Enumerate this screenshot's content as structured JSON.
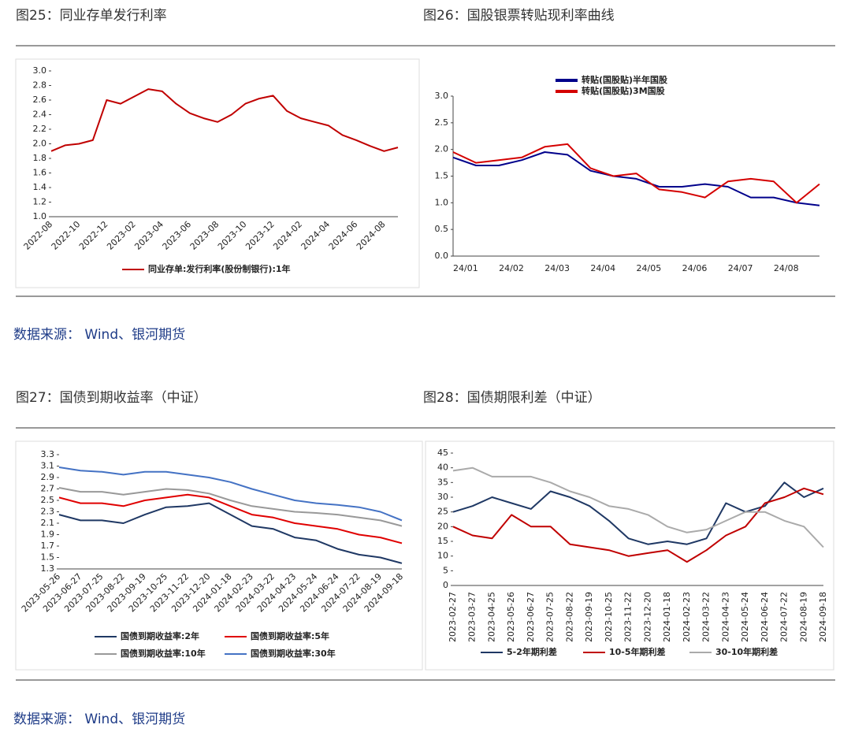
{
  "chart_data": [
    {
      "type": "line",
      "title": "图25：同业存单发行利率",
      "categories": [
        "2022-08",
        null,
        "2022-10",
        null,
        "2022-12",
        null,
        "2023-02",
        null,
        "2023-04",
        null,
        "2023-06",
        null,
        "2023-08",
        null,
        "2023-10",
        null,
        "2023-12",
        null,
        "2024-02",
        null,
        "2024-04",
        null,
        "2024-06",
        null,
        "2024-08",
        null
      ],
      "series": [
        {
          "name": "同业存单:发行利率(股份制银行):1年",
          "color": "#c00000",
          "values": [
            1.9,
            1.98,
            2.0,
            2.05,
            2.6,
            2.55,
            2.65,
            2.75,
            2.72,
            2.55,
            2.42,
            2.35,
            2.3,
            2.4,
            2.55,
            2.62,
            2.66,
            2.45,
            2.35,
            2.3,
            2.25,
            2.12,
            2.05,
            1.97,
            1.9,
            1.95
          ]
        }
      ],
      "ylim": [
        1.0,
        3.0
      ],
      "yticks": [
        {
          "value": 1,
          "label": "1.0"
        },
        1.2,
        1.4,
        1.6,
        1.8,
        {
          "value": 2,
          "label": "2.0"
        },
        2.2,
        2.4,
        2.6,
        2.8,
        {
          "value": 3,
          "label": "3.0"
        }
      ],
      "legend": "bottom"
    },
    {
      "type": "line",
      "title": "图26：国股银票转贴现利率曲线",
      "categories": [
        "24/01",
        null,
        "24/02",
        null,
        "24/03",
        null,
        "24/04",
        null,
        "24/05",
        null,
        "24/06",
        null,
        "24/07",
        null,
        "24/08",
        null,
        null
      ],
      "series": [
        {
          "name": "转贴(国股贴)半年国股",
          "color": "#00008b",
          "values": [
            1.85,
            1.7,
            1.7,
            1.8,
            1.95,
            1.9,
            1.6,
            1.5,
            1.45,
            1.3,
            1.3,
            1.35,
            1.3,
            1.1,
            1.1,
            1.0,
            0.95
          ]
        },
        {
          "name": "转贴(国股贴)3M国股",
          "color": "#d40000",
          "values": [
            1.95,
            1.75,
            1.8,
            1.85,
            2.05,
            2.1,
            1.65,
            1.5,
            1.55,
            1.25,
            1.2,
            1.1,
            1.4,
            1.45,
            1.4,
            1.0,
            1.35
          ]
        }
      ],
      "ylim": [
        0,
        3.0
      ],
      "yticks": [
        {
          "value": 0,
          "label": "0.0"
        },
        0.5,
        {
          "value": 1,
          "label": "1.0"
        },
        1.5,
        {
          "value": 2,
          "label": "2.0"
        },
        2.5,
        {
          "value": 3,
          "label": "3.0"
        }
      ],
      "legend": "top"
    },
    {
      "type": "line",
      "title": "图27：国债到期收益率（中证）",
      "categories": [
        "2023-05-26",
        "2023-06-27",
        "2023-07-25",
        "2023-08-22",
        "2023-09-19",
        "2023-10-25",
        "2023-11-22",
        "2023-12-20",
        "2024-01-18",
        "2024-02-23",
        "2024-03-22",
        "2024-04-23",
        "2024-05-24",
        "2024-06-24",
        "2024-07-22",
        "2024-08-19",
        "2024-09-18"
      ],
      "series": [
        {
          "name": "国债到期收益率:2年",
          "color": "#1f3864",
          "values": [
            2.25,
            2.15,
            2.15,
            2.1,
            2.25,
            2.38,
            2.4,
            2.45,
            2.25,
            2.05,
            2.0,
            1.85,
            1.8,
            1.65,
            1.55,
            1.5,
            1.4
          ]
        },
        {
          "name": "国债到期收益率:5年",
          "color": "#e00000",
          "values": [
            2.55,
            2.45,
            2.45,
            2.4,
            2.5,
            2.55,
            2.6,
            2.55,
            2.4,
            2.25,
            2.2,
            2.1,
            2.05,
            2.0,
            1.9,
            1.85,
            1.75
          ]
        },
        {
          "name": "国债到期收益率:10年",
          "color": "#999999",
          "values": [
            2.72,
            2.65,
            2.65,
            2.6,
            2.65,
            2.7,
            2.68,
            2.62,
            2.5,
            2.4,
            2.35,
            2.3,
            2.28,
            2.25,
            2.2,
            2.15,
            2.05
          ]
        },
        {
          "name": "国债到期收益率:30年",
          "color": "#4472c4",
          "values": [
            3.08,
            3.02,
            3.0,
            2.95,
            3.0,
            3.0,
            2.95,
            2.9,
            2.82,
            2.7,
            2.6,
            2.5,
            2.45,
            2.42,
            2.38,
            2.3,
            2.15
          ]
        }
      ],
      "ylim": [
        1.3,
        3.3
      ],
      "yticks": [
        1.3,
        1.5,
        1.7,
        1.9,
        2.1,
        2.3,
        2.5,
        2.7,
        2.9,
        3.1,
        3.3
      ],
      "legend": "bottom"
    },
    {
      "type": "line",
      "title": "图28：国债期限利差（中证）",
      "categories": [
        "2023-02-27",
        "2023-03-27",
        "2023-04-25",
        "2023-05-26",
        "2023-06-27",
        "2023-07-25",
        "2023-08-22",
        "2023-09-19",
        "2023-10-25",
        "2023-11-22",
        "2023-12-20",
        "2024-01-18",
        "2024-02-23",
        "2024-03-22",
        "2024-04-23",
        "2024-05-24",
        "2024-06-24",
        "2024-07-22",
        "2024-08-19",
        "2024-09-18"
      ],
      "series": [
        {
          "name": "5-2年期利差",
          "color": "#1f3864",
          "values": [
            25,
            27,
            30,
            28,
            26,
            32,
            30,
            27,
            22,
            16,
            14,
            15,
            14,
            16,
            28,
            25,
            27,
            35,
            30,
            33
          ]
        },
        {
          "name": "10-5年期利差",
          "color": "#c00000",
          "values": [
            20,
            17,
            16,
            24,
            20,
            20,
            14,
            13,
            12,
            10,
            11,
            12,
            8,
            12,
            17,
            20,
            28,
            30,
            33,
            31
          ]
        },
        {
          "name": "30-10年期利差",
          "color": "#aaaaaa",
          "values": [
            39,
            40,
            37,
            37,
            37,
            35,
            32,
            30,
            27,
            26,
            24,
            20,
            18,
            19,
            22,
            25,
            25,
            22,
            20,
            13
          ]
        }
      ],
      "ylim": [
        0,
        45
      ],
      "yticks": [
        0,
        5,
        10,
        15,
        20,
        25,
        30,
        35,
        40,
        45
      ],
      "legend": "bottom"
    }
  ],
  "sources": [
    "数据来源： Wind、银河期货",
    "数据来源： Wind、银河期货"
  ]
}
